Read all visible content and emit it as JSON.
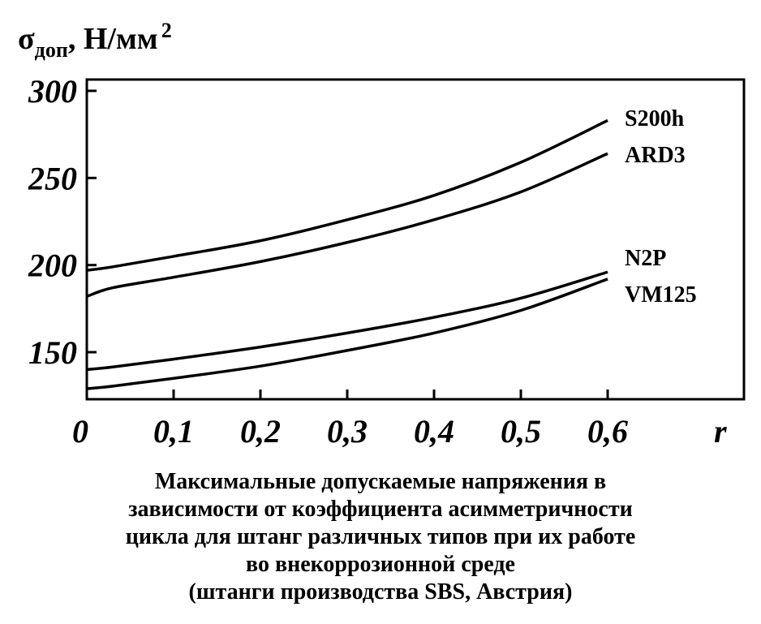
{
  "chart_data": {
    "type": "line",
    "y_label": {
      "symbol": "σ",
      "subscript": "доп",
      "unit": ", Н/мм",
      "superscript": "2"
    },
    "x_label": "r",
    "x": [
      0,
      0.03,
      0.1,
      0.2,
      0.3,
      0.4,
      0.5,
      0.6
    ],
    "series": [
      {
        "name": "S200h",
        "color": "#000000",
        "values": [
          197,
          199,
          205,
          214,
          226,
          240,
          259,
          283
        ]
      },
      {
        "name": "ARD3",
        "color": "#000000",
        "values": [
          182,
          187,
          193,
          202,
          213,
          226,
          242,
          264
        ]
      },
      {
        "name": "N2P",
        "color": "#000000",
        "values": [
          140,
          141.5,
          146,
          153,
          161,
          170,
          181,
          196
        ]
      },
      {
        "name": "VM125",
        "color": "#000000",
        "values": [
          129,
          130.5,
          135,
          142,
          151,
          161,
          174,
          192
        ]
      }
    ],
    "xlim": [
      0,
      0.757
    ],
    "ylim": [
      123,
      306.5
    ],
    "xticks": [
      0,
      {
        "value": 0.1,
        "label": "0,1"
      },
      {
        "value": 0.2,
        "label": "0,2"
      },
      {
        "value": 0.3,
        "label": "0,3"
      },
      {
        "value": 0.4,
        "label": "0,4"
      },
      {
        "value": 0.5,
        "label": "0,5"
      },
      {
        "value": 0.6,
        "label": "0,6"
      }
    ],
    "yticks": [
      150,
      200,
      250,
      300
    ],
    "caption": [
      "Максимальные допускаемые напряжения в",
      "зависимости от коэффициента асимметричности",
      "цикла для штанг различных типов при их работе",
      "во внекоррозионной среде",
      "(штанги производства SBS, Австрия)"
    ]
  }
}
